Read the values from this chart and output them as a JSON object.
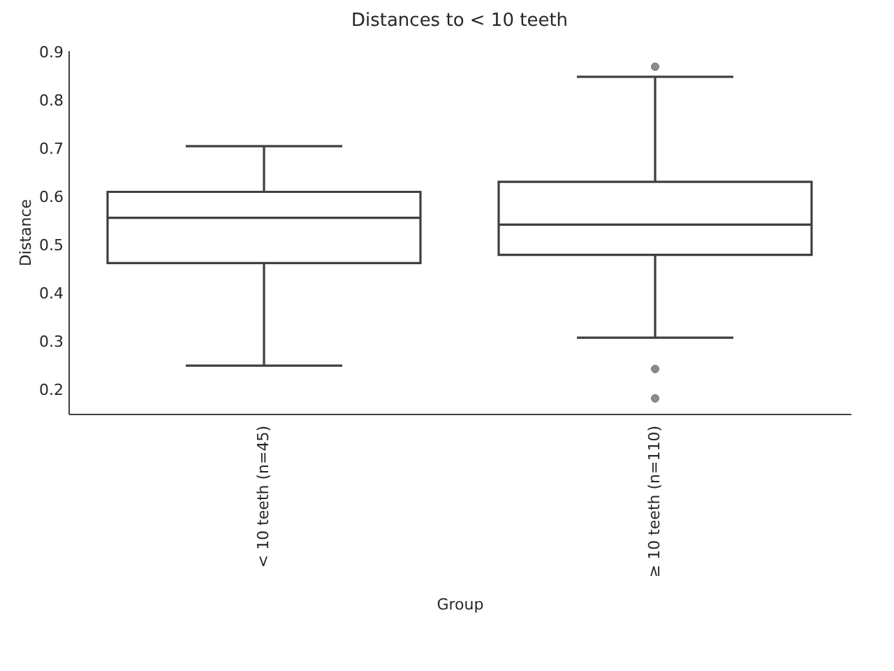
{
  "chart_data": {
    "type": "box",
    "title": "Distances to < 10 teeth",
    "xlabel": "Group",
    "ylabel": "Distance",
    "categories": [
      "< 10 teeth (n=45)",
      "≥ 10 teeth (n=110)"
    ],
    "boxes": [
      {
        "low": 0.25,
        "q1": 0.463,
        "median": 0.557,
        "q3": 0.611,
        "high": 0.706
      },
      {
        "low": 0.308,
        "q1": 0.48,
        "median": 0.543,
        "q3": 0.632,
        "high": 0.85,
        "outliers": [
          0.871,
          0.243,
          0.182
        ]
      }
    ],
    "ylim": [
      0.15,
      0.905
    ],
    "yticks": [
      0.2,
      0.3,
      0.4,
      0.5,
      0.6,
      0.7,
      0.8,
      0.9
    ]
  }
}
